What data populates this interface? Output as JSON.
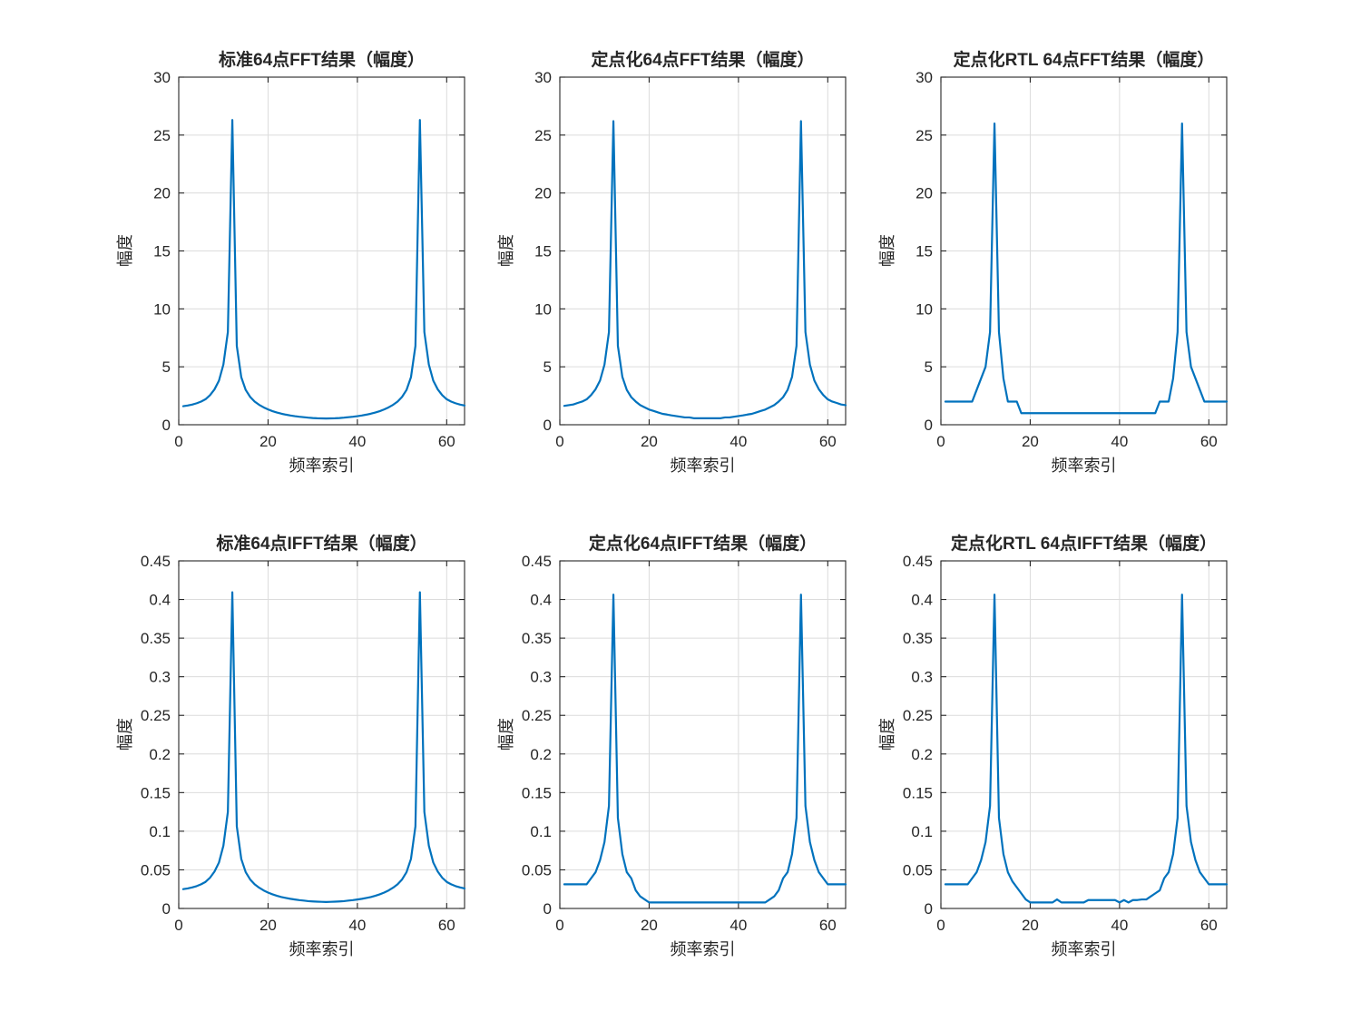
{
  "figure": {
    "background": "#ffffff",
    "axis_color": "#262626",
    "grid_color": "#dcdcdc",
    "line_color": "#0072bd",
    "text_color": "#262626"
  },
  "chart_data": [
    {
      "type": "line",
      "title": "标准64点FFT结果（幅度）",
      "xlabel": "频率索引",
      "ylabel": "幅度",
      "legend": null,
      "grid": true,
      "xlim": [
        0,
        64
      ],
      "ylim": [
        0,
        30
      ],
      "xticks": [
        0,
        20,
        40,
        60
      ],
      "xtick_labels": [
        "0",
        "20",
        "40",
        "60"
      ],
      "yticks": [
        0,
        5,
        10,
        15,
        20,
        25,
        30
      ],
      "ytick_labels": [
        "0",
        "5",
        "10",
        "15",
        "20",
        "25",
        "30"
      ],
      "x_start": 1,
      "values": [
        1.6,
        1.66,
        1.74,
        1.85,
        2.0,
        2.2,
        2.55,
        3.05,
        3.8,
        5.2,
        8.0,
        26.3,
        6.8,
        4.1,
        3.0,
        2.4,
        2.0,
        1.72,
        1.5,
        1.32,
        1.17,
        1.05,
        0.95,
        0.87,
        0.8,
        0.74,
        0.69,
        0.65,
        0.61,
        0.58,
        0.56,
        0.55,
        0.54,
        0.55,
        0.56,
        0.58,
        0.61,
        0.65,
        0.69,
        0.74,
        0.8,
        0.87,
        0.95,
        1.05,
        1.17,
        1.32,
        1.5,
        1.72,
        2.0,
        2.4,
        3.0,
        4.1,
        6.8,
        26.3,
        8.0,
        5.2,
        3.8,
        3.05,
        2.55,
        2.2,
        2.0,
        1.85,
        1.74,
        1.66
      ]
    },
    {
      "type": "line",
      "title": "定点化64点FFT结果（幅度）",
      "xlabel": "频率索引",
      "ylabel": "幅度",
      "legend": null,
      "grid": true,
      "xlim": [
        0,
        64
      ],
      "ylim": [
        0,
        30
      ],
      "xticks": [
        0,
        20,
        40,
        60
      ],
      "xtick_labels": [
        "0",
        "20",
        "40",
        "60"
      ],
      "yticks": [
        0,
        5,
        10,
        15,
        20,
        25,
        30
      ],
      "ytick_labels": [
        "0",
        "5",
        "10",
        "15",
        "20",
        "25",
        "30"
      ],
      "x_start": 1,
      "values": [
        1.63,
        1.69,
        1.75,
        1.88,
        2.0,
        2.19,
        2.56,
        3.06,
        3.81,
        5.19,
        8.0,
        26.2,
        6.81,
        4.13,
        3.0,
        2.38,
        2.0,
        1.69,
        1.5,
        1.31,
        1.19,
        1.06,
        0.94,
        0.88,
        0.81,
        0.75,
        0.69,
        0.63,
        0.63,
        0.56,
        0.56,
        0.56,
        0.56,
        0.56,
        0.56,
        0.56,
        0.63,
        0.63,
        0.69,
        0.75,
        0.81,
        0.88,
        0.94,
        1.06,
        1.19,
        1.31,
        1.5,
        1.69,
        2.0,
        2.38,
        3.0,
        4.13,
        6.81,
        26.2,
        8.0,
        5.19,
        3.81,
        3.06,
        2.56,
        2.19,
        2.0,
        1.88,
        1.75,
        1.69
      ]
    },
    {
      "type": "line",
      "title": "定点化RTL 64点FFT结果（幅度）",
      "xlabel": "频率索引",
      "ylabel": "幅度",
      "legend": null,
      "grid": true,
      "xlim": [
        0,
        64
      ],
      "ylim": [
        0,
        30
      ],
      "xticks": [
        0,
        20,
        40,
        60
      ],
      "xtick_labels": [
        "0",
        "20",
        "40",
        "60"
      ],
      "yticks": [
        0,
        5,
        10,
        15,
        20,
        25,
        30
      ],
      "ytick_labels": [
        "0",
        "5",
        "10",
        "15",
        "20",
        "25",
        "30"
      ],
      "x_start": 1,
      "values": [
        2,
        2,
        2,
        2,
        2,
        2,
        2,
        3,
        4,
        5,
        8,
        26,
        8,
        4,
        2,
        2,
        2,
        1,
        1,
        1,
        1,
        1,
        1,
        1,
        1,
        1,
        1,
        1,
        1,
        1,
        1,
        1,
        1,
        1,
        1,
        1,
        1,
        1,
        1,
        1,
        1,
        1,
        1,
        1,
        1,
        1,
        1,
        1,
        2,
        2,
        2,
        4,
        8,
        26,
        8,
        5,
        4,
        3,
        2,
        2,
        2,
        2,
        2,
        2
      ]
    },
    {
      "type": "line",
      "title": "标准64点IFFT结果（幅度）",
      "xlabel": "频率索引",
      "ylabel": "幅度",
      "legend": null,
      "grid": true,
      "xlim": [
        0,
        64
      ],
      "ylim": [
        0,
        0.45
      ],
      "xticks": [
        0,
        20,
        40,
        60
      ],
      "xtick_labels": [
        "0",
        "20",
        "40",
        "60"
      ],
      "yticks": [
        0,
        0.05,
        0.1,
        0.15,
        0.2,
        0.25,
        0.3,
        0.35,
        0.4,
        0.45
      ],
      "ytick_labels": [
        "0",
        "0.05",
        "0.1",
        "0.15",
        "0.2",
        "0.25",
        "0.3",
        "0.35",
        "0.4",
        "0.45"
      ],
      "x_start": 1,
      "values": [
        0.025,
        0.0259,
        0.0272,
        0.0289,
        0.0313,
        0.0344,
        0.0398,
        0.0477,
        0.0594,
        0.0813,
        0.125,
        0.4094,
        0.1063,
        0.0641,
        0.0469,
        0.0375,
        0.0313,
        0.0269,
        0.0234,
        0.0206,
        0.0183,
        0.0164,
        0.0148,
        0.0136,
        0.0125,
        0.0116,
        0.0108,
        0.0102,
        0.0095,
        0.0091,
        0.0088,
        0.0086,
        0.0084,
        0.0086,
        0.0088,
        0.0091,
        0.0095,
        0.0102,
        0.0108,
        0.0116,
        0.0125,
        0.0136,
        0.0148,
        0.0164,
        0.0183,
        0.0206,
        0.0234,
        0.0269,
        0.0313,
        0.0375,
        0.0469,
        0.0641,
        0.1063,
        0.4094,
        0.125,
        0.0813,
        0.0594,
        0.0477,
        0.0398,
        0.0344,
        0.0313,
        0.0289,
        0.0272,
        0.0259
      ]
    },
    {
      "type": "line",
      "title": "定点化64点IFFT结果（幅度）",
      "xlabel": "频率索引",
      "ylabel": "幅度",
      "legend": null,
      "grid": true,
      "xlim": [
        0,
        64
      ],
      "ylim": [
        0,
        0.45
      ],
      "xticks": [
        0,
        20,
        40,
        60
      ],
      "xtick_labels": [
        "0",
        "20",
        "40",
        "60"
      ],
      "yticks": [
        0,
        0.05,
        0.1,
        0.15,
        0.2,
        0.25,
        0.3,
        0.35,
        0.4,
        0.45
      ],
      "ytick_labels": [
        "0",
        "0.05",
        "0.1",
        "0.15",
        "0.2",
        "0.25",
        "0.3",
        "0.35",
        "0.4",
        "0.45"
      ],
      "x_start": 1,
      "values": [
        0.0313,
        0.0313,
        0.0313,
        0.0313,
        0.0313,
        0.0313,
        0.0391,
        0.0469,
        0.0625,
        0.0859,
        0.1328,
        0.4063,
        0.1172,
        0.0703,
        0.0469,
        0.0391,
        0.0234,
        0.0156,
        0.0117,
        0.0078,
        0.0078,
        0.0078,
        0.0078,
        0.0078,
        0.0078,
        0.0078,
        0.0078,
        0.0078,
        0.0078,
        0.0078,
        0.0078,
        0.0078,
        0.0078,
        0.0078,
        0.0078,
        0.0078,
        0.0078,
        0.0078,
        0.0078,
        0.0078,
        0.0078,
        0.0078,
        0.0078,
        0.0078,
        0.0078,
        0.0078,
        0.0117,
        0.0156,
        0.0234,
        0.0391,
        0.0469,
        0.0703,
        0.1172,
        0.4063,
        0.1328,
        0.0859,
        0.0625,
        0.0469,
        0.0391,
        0.0313,
        0.0313,
        0.0313,
        0.0313,
        0.0313
      ]
    },
    {
      "type": "line",
      "title": "定点化RTL 64点IFFT结果（幅度）",
      "xlabel": "频率索引",
      "ylabel": "幅度",
      "legend": null,
      "grid": true,
      "xlim": [
        0,
        64
      ],
      "ylim": [
        0,
        0.45
      ],
      "xticks": [
        0,
        20,
        40,
        60
      ],
      "xtick_labels": [
        "0",
        "20",
        "40",
        "60"
      ],
      "yticks": [
        0,
        0.05,
        0.1,
        0.15,
        0.2,
        0.25,
        0.3,
        0.35,
        0.4,
        0.45
      ],
      "ytick_labels": [
        "0",
        "0.05",
        "0.1",
        "0.15",
        "0.2",
        "0.25",
        "0.3",
        "0.35",
        "0.4",
        "0.45"
      ],
      "x_start": 1,
      "values": [
        0.0313,
        0.0313,
        0.0313,
        0.0313,
        0.0313,
        0.0313,
        0.0391,
        0.0469,
        0.0625,
        0.0859,
        0.1328,
        0.4063,
        0.1172,
        0.0703,
        0.0469,
        0.0352,
        0.0273,
        0.0195,
        0.0117,
        0.0078,
        0.0078,
        0.0078,
        0.0078,
        0.0078,
        0.0078,
        0.0117,
        0.0078,
        0.0078,
        0.0078,
        0.0078,
        0.0078,
        0.0078,
        0.0109,
        0.0109,
        0.0109,
        0.0109,
        0.0109,
        0.0109,
        0.0109,
        0.0078,
        0.0109,
        0.0078,
        0.0109,
        0.0109,
        0.0117,
        0.0117,
        0.0156,
        0.0195,
        0.0234,
        0.0391,
        0.0469,
        0.0703,
        0.1172,
        0.4063,
        0.1328,
        0.0859,
        0.0625,
        0.0469,
        0.0391,
        0.0313,
        0.0313,
        0.0313,
        0.0313,
        0.0313
      ]
    }
  ]
}
